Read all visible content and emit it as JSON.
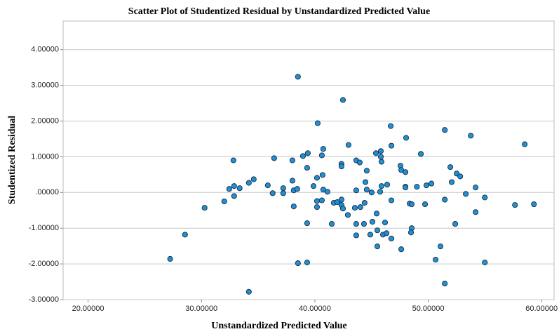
{
  "chart_data": {
    "type": "scatter",
    "title": "Scatter Plot of Studentized Residual by Unstandardized Predicted Value",
    "x_label": "Unstandardized Predicted Value",
    "y_label": "Studentized Residual",
    "color": "#1f8fd6",
    "grid": true,
    "xlim": [
      17.8,
      61.1
    ],
    "ylim": [
      -3,
      4.8
    ],
    "xticks": [
      {
        "value": 20,
        "label": "20.00000"
      },
      {
        "value": 30,
        "label": "30.00000"
      },
      {
        "value": 40,
        "label": "40.00000"
      },
      {
        "value": 50,
        "label": "50.00000"
      },
      {
        "value": 60,
        "label": "60.00000"
      }
    ],
    "yticks": [
      {
        "value": -3,
        "label": "-3.00000"
      },
      {
        "value": -2,
        "label": "-2.00000"
      },
      {
        "value": -1,
        "label": "-1.00000"
      },
      {
        "value": 0,
        "label": ".00000"
      },
      {
        "value": 1,
        "label": "1.00000"
      },
      {
        "value": 2,
        "label": "2.00000"
      },
      {
        "value": 3,
        "label": "3.00000"
      },
      {
        "value": 4,
        "label": "4.00000"
      }
    ],
    "x": [
      27.24,
      28.55,
      30.28,
      32.01,
      32.45,
      32.88,
      32.82,
      32.88,
      33.37,
      34.18,
      34.61,
      34.18,
      35.85,
      36.28,
      36.41,
      37.21,
      37.21,
      38.02,
      38.02,
      38.14,
      38.14,
      38.45,
      38.51,
      38.51,
      38.95,
      39.32,
      39.38,
      39.32,
      39.32,
      39.88,
      40.19,
      40.19,
      40.19,
      40.25,
      40.62,
      40.62,
      40.68,
      40.74,
      40.74,
      41.11,
      41.49,
      41.67,
      41.98,
      42.35,
      42.35,
      42.35,
      42.35,
      42.48,
      42.48,
      42.91,
      42.97,
      43.53,
      43.65,
      43.65,
      43.65,
      43.65,
      43.96,
      44.02,
      44.33,
      44.39,
      44.46,
      44.58,
      44.58,
      44.89,
      45.01,
      45.08,
      45.39,
      45.45,
      45.51,
      45.51,
      45.76,
      45.82,
      45.82,
      45.88,
      45.88,
      46.01,
      46.19,
      46.32,
      46.38,
      46.69,
      46.75,
      46.75,
      46.75,
      47.55,
      47.62,
      47.62,
      47.99,
      47.99,
      47.99,
      48.05,
      48.36,
      48.54,
      48.54,
      48.48,
      49.0,
      49.35,
      49.72,
      49.84,
      50.28,
      50.65,
      51.08,
      51.46,
      51.46,
      51.46,
      51.95,
      52.07,
      52.38,
      52.51,
      52.82,
      53.31,
      53.75,
      54.18,
      54.18,
      54.99,
      54.99,
      57.65,
      58.51,
      59.32
    ],
    "values": [
      -1.86,
      -1.18,
      -0.43,
      -0.25,
      0.1,
      0.18,
      0.9,
      -0.1,
      0.12,
      0.27,
      0.37,
      -2.78,
      0.2,
      -0.02,
      0.96,
      0.12,
      -0.02,
      0.9,
      0.33,
      -0.39,
      0.06,
      0.1,
      3.24,
      -1.98,
      1.02,
      0.69,
      1.1,
      -0.86,
      -1.96,
      0.18,
      -0.24,
      0.41,
      -0.41,
      1.94,
      1.04,
      -0.22,
      0.49,
      1.22,
      0.08,
      0.02,
      -0.88,
      -0.29,
      -0.27,
      0.8,
      0.73,
      -0.2,
      -0.35,
      -0.45,
      2.59,
      -0.63,
      1.33,
      -0.43,
      0.9,
      0.06,
      -0.88,
      -1.2,
      0.84,
      -0.41,
      -0.88,
      -0.29,
      0.29,
      0.61,
      0.08,
      -1.18,
      0.0,
      -0.82,
      1.1,
      -0.59,
      -1.06,
      -1.51,
      0.02,
      1.16,
      1.0,
      0.86,
      0.18,
      -1.18,
      -0.84,
      -1.14,
      0.22,
      1.86,
      1.31,
      -0.22,
      -1.29,
      0.75,
      0.63,
      -1.59,
      0.57,
      0.16,
      0.14,
      1.53,
      -0.31,
      -0.33,
      -1.0,
      -1.12,
      0.16,
      1.08,
      -0.33,
      0.2,
      0.25,
      -1.88,
      -1.51,
      1.75,
      -0.2,
      -2.55,
      0.71,
      0.29,
      -0.88,
      0.53,
      0.45,
      -0.04,
      1.59,
      0.14,
      -0.55,
      -0.14,
      -1.96,
      -0.35,
      1.35,
      -0.33
    ]
  }
}
